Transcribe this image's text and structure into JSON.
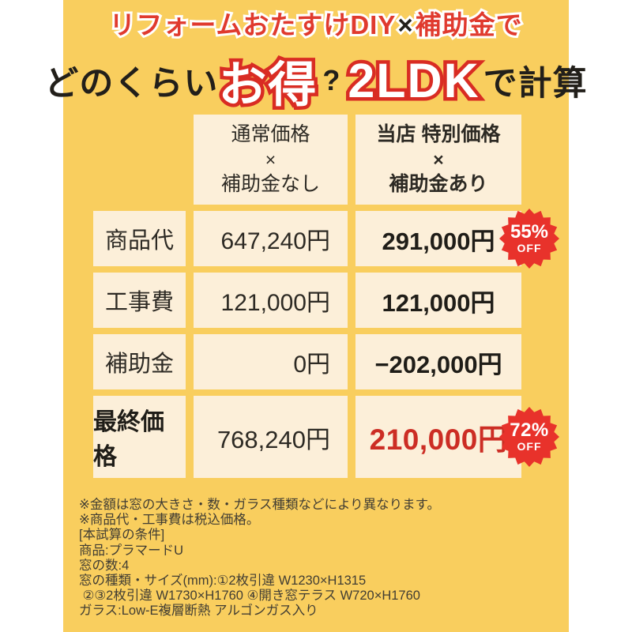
{
  "title": {
    "line1": {
      "part1": "リフォームおたすけDIY",
      "multiply": "×",
      "part2": "補助金で"
    },
    "line2": {
      "prefix": "どのくらい",
      "highlight1": "お得",
      "question": "?",
      "highlight2": "2LDK",
      "suffix": "で計算"
    }
  },
  "table": {
    "columns": [
      {
        "line1": "通常価格",
        "line2": "×",
        "line3": "補助金なし"
      },
      {
        "line1": "当店 特別価格",
        "line2": "×",
        "line3": "補助金あり"
      }
    ],
    "rows": [
      {
        "label": "商品代",
        "normal": "647,240円",
        "special": "291,000円",
        "badge": {
          "percent": "55%",
          "off": "OFF"
        }
      },
      {
        "label": "工事費",
        "normal": "121,000円",
        "special": "121,000円"
      },
      {
        "label": "補助金",
        "normal": "0円",
        "special": "−202,000円"
      },
      {
        "label": "最終価格",
        "normal": "768,240円",
        "special": "210,000円",
        "badge": {
          "percent": "72%",
          "off": "OFF"
        }
      }
    ]
  },
  "notes": [
    "※金額は窓の大きさ・数・ガラス種類などにより異なります。",
    "※商品代・工事費は税込価格。",
    "[本試算の条件]",
    "商品:プラマードU",
    "窓の数:4",
    "窓の種類・サイズ(mm):①2枚引違 W1230×H1315",
    " ②③2枚引違 W1730×H1760 ④開き窓テラス W720×H1760",
    "ガラス:Low-E複層断熱 アルゴンガス入り"
  ],
  "colors": {
    "canvas_yellow": "#f9ce5e",
    "cell_cream": "#fcefd9",
    "accent_red": "#e03a2e",
    "badge_red": "#e8322b",
    "final_price_red": "#cc2d24",
    "text_dark": "#2d2a24"
  }
}
